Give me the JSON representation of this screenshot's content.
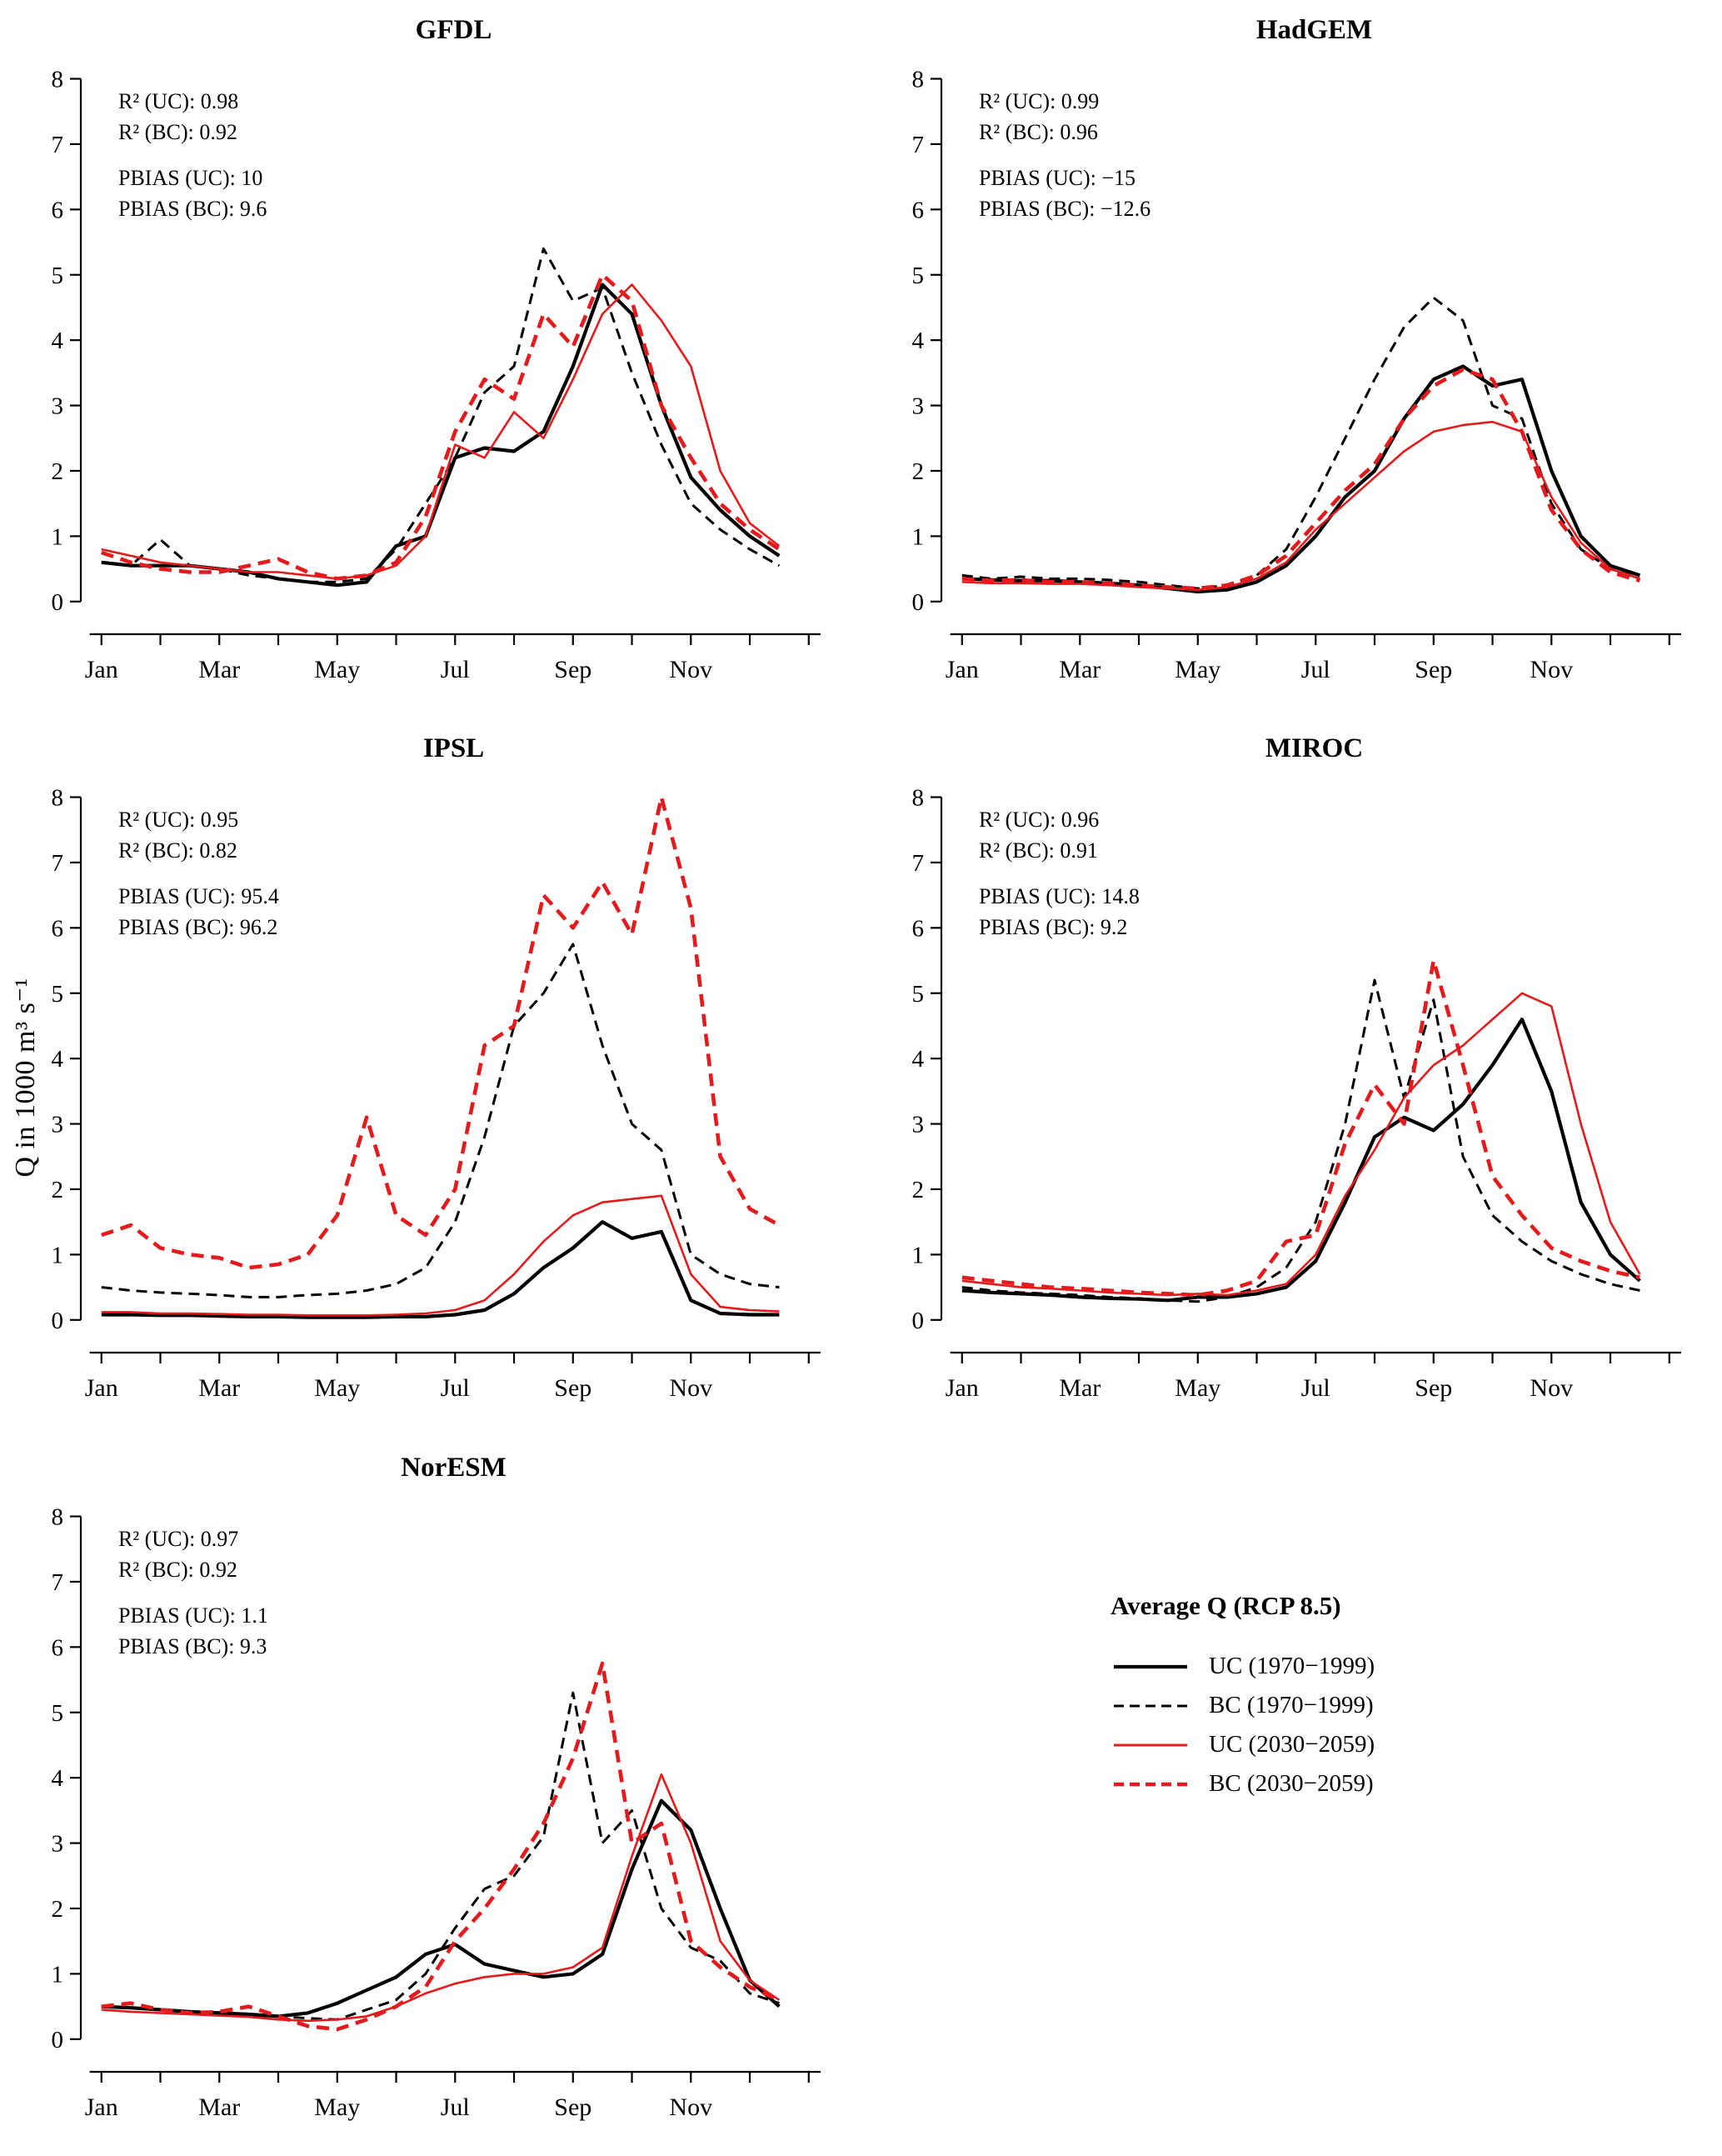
{
  "figure": {
    "ylabel": "Q in 1000 m³ s⁻¹",
    "x_ticklabels": [
      "Jan",
      "Mar",
      "May",
      "Jul",
      "Sep",
      "Nov"
    ],
    "x_ticklabel_positions": [
      0,
      2,
      4,
      6,
      8,
      10
    ],
    "yticks": [
      0,
      1,
      2,
      3,
      4,
      5,
      6,
      7,
      8
    ],
    "colors": {
      "historical": "#000000",
      "future": "#e41a1c"
    },
    "line_styles": {
      "uc_hist": {
        "color": "#000000",
        "width": 4.2,
        "dash": ""
      },
      "bc_hist": {
        "color": "#000000",
        "width": 3.0,
        "dash": "13,8"
      },
      "uc_fut": {
        "color": "#e41a1c",
        "width": 2.6,
        "dash": ""
      },
      "bc_fut": {
        "color": "#e41a1c",
        "width": 4.6,
        "dash": "15,9"
      }
    }
  },
  "legend": {
    "title": "Average Q (RCP 8.5)",
    "entries": [
      {
        "label": "UC (1970−1999)",
        "style": "uc_hist"
      },
      {
        "label": "BC (1970−1999)",
        "style": "bc_hist"
      },
      {
        "label": "UC (2030−2059)",
        "style": "uc_fut"
      },
      {
        "label": "BC (2030−2059)",
        "style": "bc_fut"
      }
    ]
  },
  "chart_data": [
    {
      "type": "line",
      "title": "GFDL",
      "xlabel": "",
      "ylabel": "Q in 1000 m³ s⁻¹",
      "ylim": [
        0,
        8
      ],
      "x_unit": "month (semi-monthly points, Jan=0)",
      "x_start": 0,
      "x_step": 0.5,
      "stats": [
        "R² (UC): 0.98",
        "R² (BC): 0.92",
        "",
        "PBIAS (UC): 10",
        "PBIAS (BC): 9.6"
      ],
      "series": [
        {
          "name": "UC (1970−1999)",
          "style": "uc_hist",
          "values": [
            0.6,
            0.55,
            0.55,
            0.55,
            0.5,
            0.45,
            0.35,
            0.3,
            0.25,
            0.3,
            0.85,
            1.0,
            2.2,
            2.35,
            2.3,
            2.6,
            3.6,
            4.85,
            4.4,
            3.0,
            1.9,
            1.4,
            1.0,
            0.7
          ]
        },
        {
          "name": "BC (1970−1999)",
          "style": "bc_hist",
          "values": [
            0.6,
            0.55,
            0.95,
            0.55,
            0.5,
            0.4,
            0.35,
            0.3,
            0.3,
            0.35,
            0.8,
            1.5,
            2.2,
            3.2,
            3.6,
            5.4,
            4.6,
            4.8,
            3.5,
            2.4,
            1.5,
            1.1,
            0.8,
            0.55
          ]
        },
        {
          "name": "UC (2030−2059)",
          "style": "uc_fut",
          "values": [
            0.8,
            0.7,
            0.6,
            0.55,
            0.5,
            0.45,
            0.45,
            0.4,
            0.35,
            0.4,
            0.55,
            1.0,
            2.4,
            2.2,
            2.9,
            2.5,
            3.4,
            4.4,
            4.85,
            4.3,
            3.6,
            2.0,
            1.2,
            0.85
          ]
        },
        {
          "name": "BC (2030−2059)",
          "style": "bc_fut",
          "values": [
            0.75,
            0.6,
            0.5,
            0.45,
            0.45,
            0.55,
            0.65,
            0.45,
            0.35,
            0.4,
            0.6,
            1.3,
            2.6,
            3.4,
            3.1,
            4.4,
            3.9,
            5.0,
            4.6,
            3.0,
            2.2,
            1.5,
            1.1,
            0.8
          ]
        }
      ]
    },
    {
      "type": "line",
      "title": "HadGEM",
      "xlabel": "",
      "ylabel": "Q in 1000 m³ s⁻¹",
      "ylim": [
        0,
        8
      ],
      "x_unit": "month (semi-monthly points, Jan=0)",
      "x_start": 0,
      "x_step": 0.5,
      "stats": [
        "R² (UC): 0.99",
        "R² (BC): 0.96",
        "",
        "PBIAS (UC): −15",
        "PBIAS (BC): −12.6"
      ],
      "series": [
        {
          "name": "UC (1970−1999)",
          "style": "uc_hist",
          "values": [
            0.35,
            0.33,
            0.32,
            0.32,
            0.3,
            0.28,
            0.25,
            0.2,
            0.15,
            0.18,
            0.3,
            0.55,
            1.0,
            1.6,
            2.0,
            2.8,
            3.4,
            3.6,
            3.3,
            3.4,
            2.0,
            1.0,
            0.55,
            0.4
          ]
        },
        {
          "name": "BC (1970−1999)",
          "style": "bc_hist",
          "values": [
            0.4,
            0.35,
            0.38,
            0.35,
            0.35,
            0.33,
            0.3,
            0.25,
            0.2,
            0.25,
            0.4,
            0.8,
            1.6,
            2.5,
            3.4,
            4.2,
            4.65,
            4.3,
            3.0,
            2.8,
            1.5,
            0.8,
            0.5,
            0.35
          ]
        },
        {
          "name": "UC (2030−2059)",
          "style": "uc_fut",
          "values": [
            0.3,
            0.28,
            0.28,
            0.27,
            0.27,
            0.25,
            0.22,
            0.2,
            0.18,
            0.22,
            0.35,
            0.6,
            1.1,
            1.5,
            1.9,
            2.3,
            2.6,
            2.7,
            2.75,
            2.6,
            1.6,
            0.9,
            0.5,
            0.35
          ]
        },
        {
          "name": "BC (2030−2059)",
          "style": "bc_fut",
          "values": [
            0.35,
            0.32,
            0.33,
            0.3,
            0.3,
            0.28,
            0.25,
            0.22,
            0.2,
            0.25,
            0.4,
            0.7,
            1.2,
            1.7,
            2.1,
            2.8,
            3.3,
            3.55,
            3.4,
            2.6,
            1.4,
            0.8,
            0.45,
            0.32
          ]
        }
      ]
    },
    {
      "type": "line",
      "title": "IPSL",
      "xlabel": "",
      "ylabel": "Q in 1000 m³ s⁻¹",
      "ylim": [
        0,
        8
      ],
      "x_unit": "month (semi-monthly points, Jan=0)",
      "x_start": 0,
      "x_step": 0.5,
      "stats": [
        "R² (UC): 0.95",
        "R² (BC): 0.82",
        "",
        "PBIAS (UC): 95.4",
        "PBIAS (BC): 96.2"
      ],
      "series": [
        {
          "name": "UC (1970−1999)",
          "style": "uc_hist",
          "values": [
            0.08,
            0.08,
            0.07,
            0.07,
            0.06,
            0.05,
            0.05,
            0.04,
            0.04,
            0.04,
            0.05,
            0.05,
            0.08,
            0.15,
            0.4,
            0.8,
            1.1,
            1.5,
            1.25,
            1.35,
            0.3,
            0.1,
            0.08,
            0.08
          ]
        },
        {
          "name": "BC (1970−1999)",
          "style": "bc_hist",
          "values": [
            0.5,
            0.45,
            0.42,
            0.4,
            0.38,
            0.35,
            0.35,
            0.38,
            0.4,
            0.45,
            0.55,
            0.8,
            1.5,
            2.8,
            4.5,
            5.0,
            5.75,
            4.2,
            3.0,
            2.6,
            1.0,
            0.7,
            0.55,
            0.5
          ]
        },
        {
          "name": "UC (2030−2059)",
          "style": "uc_fut",
          "values": [
            0.12,
            0.12,
            0.1,
            0.1,
            0.09,
            0.08,
            0.08,
            0.07,
            0.07,
            0.07,
            0.08,
            0.1,
            0.15,
            0.3,
            0.7,
            1.2,
            1.6,
            1.8,
            1.85,
            1.9,
            0.7,
            0.2,
            0.15,
            0.13
          ]
        },
        {
          "name": "BC (2030−2059)",
          "style": "bc_fut",
          "values": [
            1.3,
            1.45,
            1.1,
            1.0,
            0.95,
            0.8,
            0.85,
            1.0,
            1.6,
            3.1,
            1.6,
            1.3,
            2.0,
            4.2,
            4.5,
            6.5,
            6.0,
            6.7,
            5.9,
            8.0,
            6.3,
            2.5,
            1.7,
            1.45
          ]
        }
      ]
    },
    {
      "type": "line",
      "title": "MIROC",
      "xlabel": "",
      "ylabel": "Q in 1000 m³ s⁻¹",
      "ylim": [
        0,
        8
      ],
      "x_unit": "month (semi-monthly points, Jan=0)",
      "x_start": 0,
      "x_step": 0.5,
      "stats": [
        "R² (UC): 0.96",
        "R² (BC): 0.91",
        "",
        "PBIAS (UC): 14.8",
        "PBIAS (BC): 9.2"
      ],
      "series": [
        {
          "name": "UC (1970−1999)",
          "style": "uc_hist",
          "values": [
            0.45,
            0.42,
            0.4,
            0.38,
            0.35,
            0.33,
            0.32,
            0.3,
            0.35,
            0.35,
            0.4,
            0.5,
            0.9,
            1.8,
            2.8,
            3.1,
            2.9,
            3.3,
            3.9,
            4.6,
            3.5,
            1.8,
            1.0,
            0.6
          ]
        },
        {
          "name": "BC (1970−1999)",
          "style": "bc_hist",
          "values": [
            0.5,
            0.45,
            0.42,
            0.4,
            0.38,
            0.35,
            0.33,
            0.3,
            0.28,
            0.35,
            0.5,
            0.8,
            1.5,
            3.0,
            5.2,
            3.4,
            4.9,
            2.5,
            1.6,
            1.2,
            0.9,
            0.7,
            0.55,
            0.45
          ]
        },
        {
          "name": "UC (2030−2059)",
          "style": "uc_fut",
          "values": [
            0.6,
            0.55,
            0.5,
            0.48,
            0.45,
            0.42,
            0.4,
            0.38,
            0.4,
            0.38,
            0.45,
            0.55,
            1.0,
            1.9,
            2.6,
            3.4,
            3.9,
            4.2,
            4.6,
            5.0,
            4.8,
            3.0,
            1.5,
            0.7
          ]
        },
        {
          "name": "BC (2030−2059)",
          "style": "bc_fut",
          "values": [
            0.65,
            0.6,
            0.55,
            0.5,
            0.48,
            0.45,
            0.42,
            0.4,
            0.38,
            0.45,
            0.6,
            1.2,
            1.3,
            2.7,
            3.6,
            3.0,
            5.5,
            3.9,
            2.2,
            1.6,
            1.1,
            0.9,
            0.75,
            0.65
          ]
        }
      ]
    },
    {
      "type": "line",
      "title": "NorESM",
      "xlabel": "",
      "ylabel": "Q in 1000 m³ s⁻¹",
      "ylim": [
        0,
        8
      ],
      "x_unit": "month (semi-monthly points, Jan=0)",
      "x_start": 0,
      "x_step": 0.5,
      "stats": [
        "R² (UC): 0.97",
        "R² (BC): 0.92",
        "",
        "PBIAS (UC): 1.1",
        "PBIAS (BC): 9.3"
      ],
      "series": [
        {
          "name": "UC (1970−1999)",
          "style": "uc_hist",
          "values": [
            0.5,
            0.48,
            0.45,
            0.42,
            0.4,
            0.38,
            0.35,
            0.4,
            0.55,
            0.75,
            0.95,
            1.3,
            1.45,
            1.15,
            1.05,
            0.95,
            1.0,
            1.3,
            2.6,
            3.65,
            3.2,
            2.0,
            0.9,
            0.5
          ]
        },
        {
          "name": "BC (1970−1999)",
          "style": "bc_hist",
          "values": [
            0.5,
            0.48,
            0.45,
            0.42,
            0.4,
            0.38,
            0.35,
            0.32,
            0.3,
            0.45,
            0.6,
            1.0,
            1.7,
            2.3,
            2.5,
            3.1,
            5.3,
            3.0,
            3.5,
            2.0,
            1.4,
            1.2,
            0.7,
            0.55
          ]
        },
        {
          "name": "UC (2030−2059)",
          "style": "uc_fut",
          "values": [
            0.45,
            0.42,
            0.4,
            0.38,
            0.36,
            0.34,
            0.3,
            0.28,
            0.3,
            0.35,
            0.5,
            0.7,
            0.85,
            0.95,
            1.0,
            1.0,
            1.1,
            1.4,
            2.8,
            4.05,
            3.0,
            1.5,
            0.9,
            0.6
          ]
        },
        {
          "name": "BC (2030−2059)",
          "style": "bc_fut",
          "values": [
            0.5,
            0.55,
            0.45,
            0.4,
            0.42,
            0.5,
            0.35,
            0.2,
            0.15,
            0.3,
            0.5,
            0.8,
            1.5,
            2.0,
            2.6,
            3.3,
            4.3,
            5.75,
            3.0,
            3.3,
            1.5,
            1.1,
            0.8,
            0.6
          ]
        }
      ]
    }
  ]
}
